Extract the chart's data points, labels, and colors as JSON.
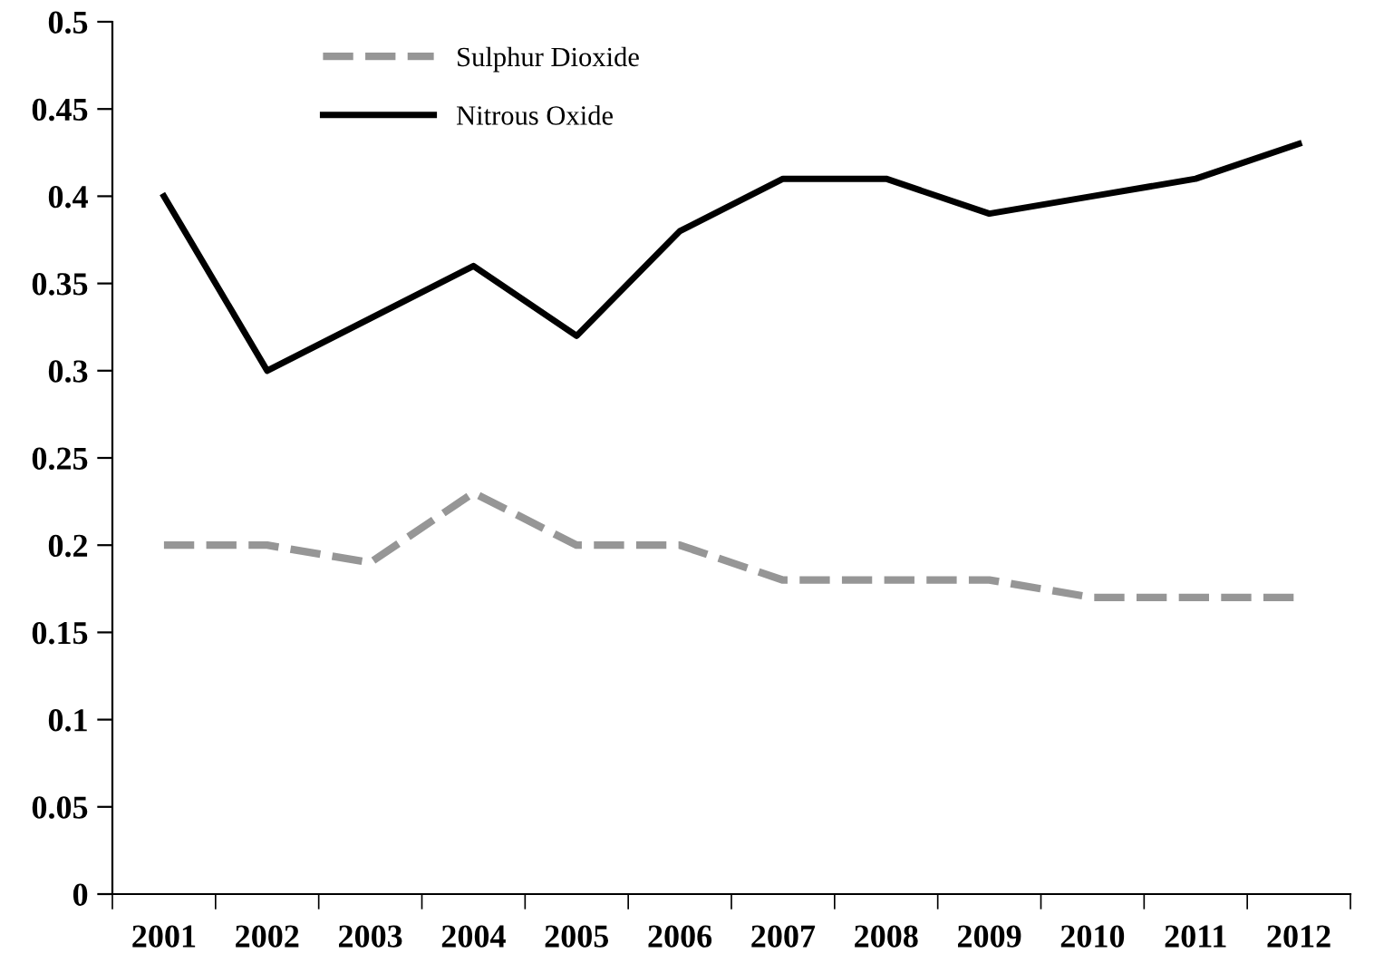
{
  "chart_data": {
    "type": "line",
    "categories": [
      "2001",
      "2002",
      "2003",
      "2004",
      "2005",
      "2006",
      "2007",
      "2008",
      "2009",
      "2010",
      "2011",
      "2012"
    ],
    "series": [
      {
        "name": "Sulphur Dioxide",
        "color": "#969696",
        "line_style": "dashed",
        "values": [
          0.2,
          0.2,
          0.19,
          0.23,
          0.2,
          0.2,
          0.18,
          0.18,
          0.18,
          0.17,
          0.17,
          0.17
        ]
      },
      {
        "name": "Nitrous Oxide",
        "color": "#000000",
        "line_style": "solid",
        "values": [
          0.4,
          0.3,
          0.33,
          0.36,
          0.32,
          0.38,
          0.41,
          0.41,
          0.39,
          0.4,
          0.41,
          0.43
        ]
      }
    ],
    "ylim": [
      0,
      0.5
    ],
    "yticks": [
      0,
      0.05,
      0.1,
      0.15,
      0.2,
      0.25,
      0.3,
      0.35,
      0.4,
      0.45,
      0.5
    ],
    "grid": false,
    "legend": "top left",
    "marker": "none"
  }
}
